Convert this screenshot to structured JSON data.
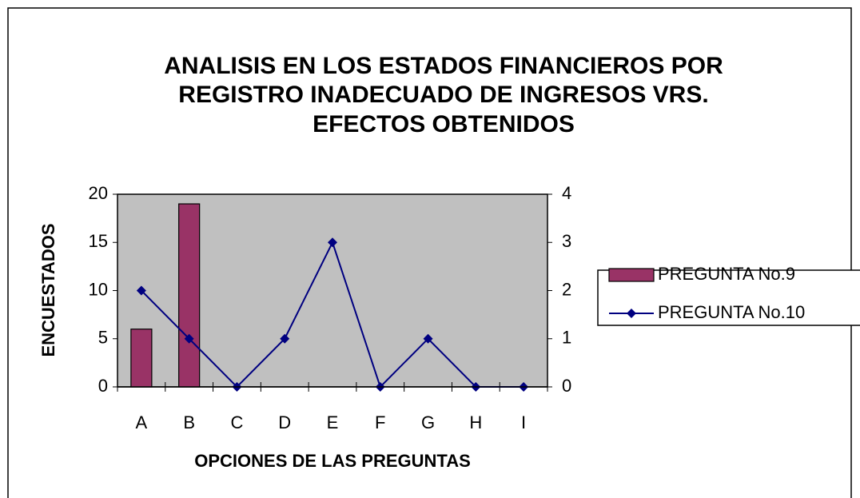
{
  "chart_data": {
    "type": "bar",
    "title": [
      "ANALISIS EN LOS ESTADOS FINANCIEROS  POR",
      "REGISTRO INADECUADO DE  INGRESOS VRS.",
      "EFECTOS OBTENIDOS"
    ],
    "xlabel": "OPCIONES DE LAS PREGUNTAS",
    "ylabel": "ENCUESTADOS",
    "categories": [
      "A",
      "B",
      "C",
      "D",
      "E",
      "F",
      "G",
      "H",
      "I"
    ],
    "series": [
      {
        "name": "PREGUNTA No.9",
        "type": "bar",
        "color": "#993366",
        "values": [
          6,
          19,
          0,
          0,
          0,
          0,
          0,
          0,
          0
        ]
      },
      {
        "name": "PREGUNTA No.10",
        "type": "line",
        "axis": "y2",
        "color": "#000080",
        "values": [
          2,
          1,
          0,
          1,
          3,
          0,
          1,
          0,
          0
        ]
      }
    ],
    "ylim": [
      0,
      20
    ],
    "yticks": [
      0,
      5,
      10,
      15,
      20
    ],
    "y2lim": [
      0,
      4
    ],
    "y2ticks": [
      0,
      1,
      2,
      3,
      4
    ],
    "grid": false,
    "plot_background": "#c0c0c0",
    "legend": "right"
  }
}
